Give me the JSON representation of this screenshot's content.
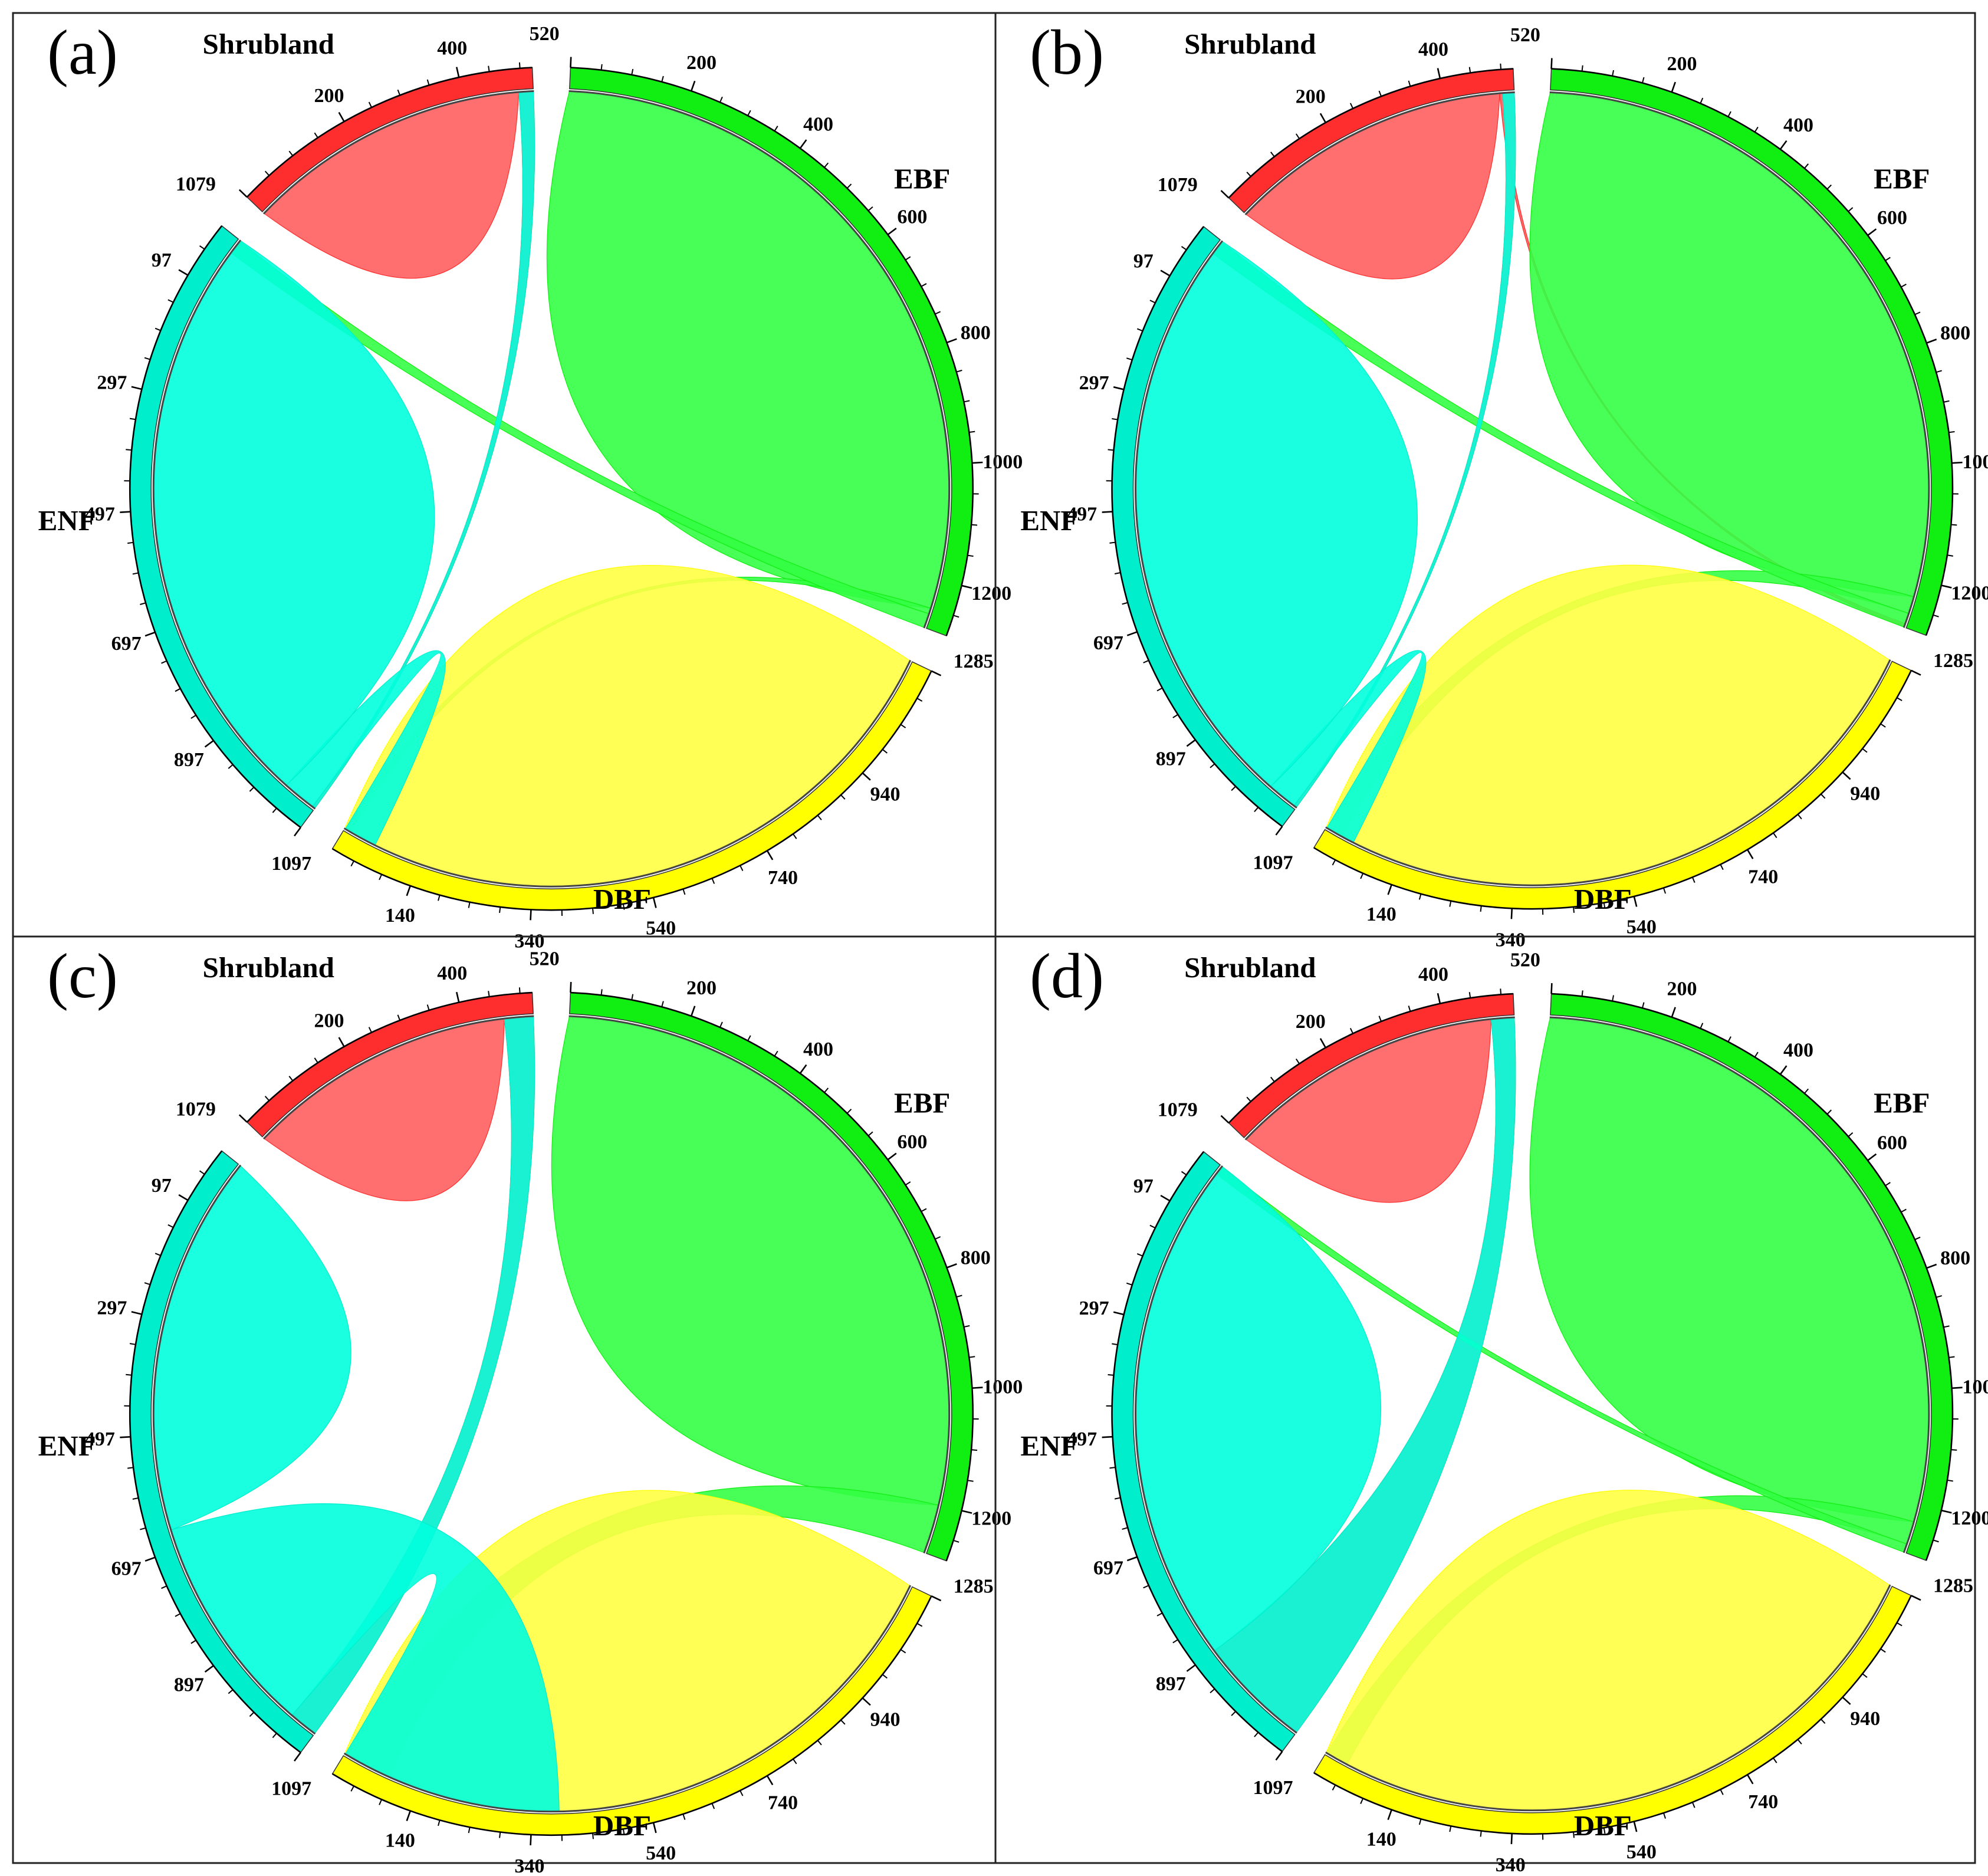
{
  "figure": {
    "panels": [
      {
        "label": "(a)"
      },
      {
        "label": "(b)"
      },
      {
        "label": "(c)"
      },
      {
        "label": "(d)"
      }
    ]
  },
  "chart_data": {
    "type": "chord",
    "unit_note": "segment ticks are counts; tick labels every 200",
    "tick_step_labeled": 200,
    "tick_step_minor": 50,
    "groups": [
      {
        "id": "shrubland",
        "name": "Shrubland",
        "total": 520,
        "color": "#ff2e2e",
        "ribbon_color": "#ff5f5f",
        "total_label": "520"
      },
      {
        "id": "ebf",
        "name": "EBF",
        "total": 1285,
        "color": "#11ee11",
        "ribbon_color": "#33ff44",
        "total_label": "1285"
      },
      {
        "id": "dbf",
        "name": "DBF",
        "total": 1140,
        "color": "#ffff00",
        "ribbon_color": "#ffff44",
        "total_label": ""
      },
      {
        "id": "enf",
        "name": "ENF",
        "total": 1097,
        "color": "#00eecc",
        "ribbon_color": "#00ffdd",
        "total_label": "1097"
      }
    ],
    "boundary_labels": [
      {
        "between": [
          "enf",
          "shrubland"
        ],
        "text": "1079"
      }
    ],
    "matrices": {
      "a": [
        [
          495,
          0,
          0,
          25
        ],
        [
          0,
          1250,
          10,
          25
        ],
        [
          0,
          0,
          1140,
          0
        ],
        [
          5,
          0,
          58,
          1034
        ]
      ],
      "b": [
        [
          495,
          5,
          0,
          20
        ],
        [
          0,
          1230,
          30,
          25
        ],
        [
          0,
          0,
          1140,
          0
        ],
        [
          5,
          0,
          52,
          1040
        ]
      ],
      "c": [
        [
          470,
          0,
          0,
          50
        ],
        [
          0,
          1200,
          85,
          0
        ],
        [
          0,
          0,
          1140,
          0
        ],
        [
          50,
          0,
          385,
          662
        ]
      ],
      "d": [
        [
          480,
          0,
          0,
          40
        ],
        [
          0,
          1230,
          40,
          15
        ],
        [
          0,
          0,
          1140,
          0
        ],
        [
          200,
          0,
          0,
          897
        ]
      ]
    }
  }
}
